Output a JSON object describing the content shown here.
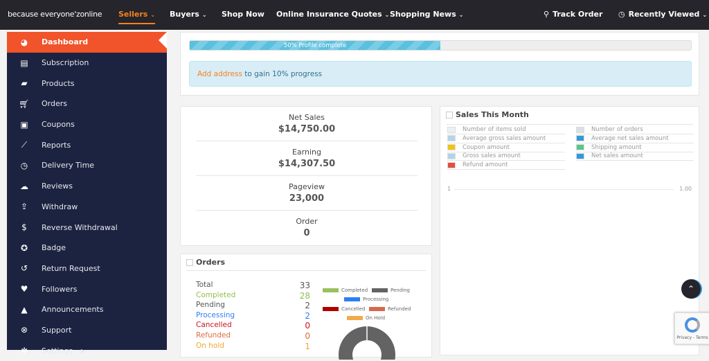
{
  "nav": {
    "brand": "because everyone'zonline",
    "items": [
      {
        "label": "Sellers",
        "dropdown": true,
        "active": true
      },
      {
        "label": "Buyers",
        "dropdown": true
      },
      {
        "label": "Shop Now"
      },
      {
        "label": "Online Insurance Quotes",
        "dropdown": true
      },
      {
        "label": "Shopping News",
        "dropdown": true
      }
    ],
    "track_order": "Track Order",
    "recently_viewed": "Recently Viewed"
  },
  "sidebar": {
    "items": [
      {
        "label": "Dashboard",
        "icon": "dashboard-icon",
        "active": true
      },
      {
        "label": "Subscription",
        "icon": "book-icon"
      },
      {
        "label": "Products",
        "icon": "briefcase-icon"
      },
      {
        "label": "Orders",
        "icon": "cart-icon"
      },
      {
        "label": "Coupons",
        "icon": "gift-icon"
      },
      {
        "label": "Reports",
        "icon": "chart-line-icon"
      },
      {
        "label": "Delivery Time",
        "icon": "clock-icon"
      },
      {
        "label": "Reviews",
        "icon": "comments-icon"
      },
      {
        "label": "Withdraw",
        "icon": "upload-icon"
      },
      {
        "label": "Reverse Withdrawal",
        "icon": "dollar-icon"
      },
      {
        "label": "Badge",
        "icon": "badge-icon"
      },
      {
        "label": "Return Request",
        "icon": "undo-icon"
      },
      {
        "label": "Followers",
        "icon": "heart-icon"
      },
      {
        "label": "Announcements",
        "icon": "bell-icon"
      },
      {
        "label": "Support",
        "icon": "lifebuoy-icon"
      },
      {
        "label": "Settings",
        "icon": "gear-icon"
      }
    ]
  },
  "profile": {
    "progress_percent": 50,
    "progress_label": "50% Profile complete",
    "alert_link": "Add address",
    "alert_text": " to gain 10% progress"
  },
  "stats": [
    {
      "label": "Net Sales",
      "value": "$14,750.00"
    },
    {
      "label": "Earning",
      "value": "$14,307.50"
    },
    {
      "label": "Pageview",
      "value": "23,000"
    },
    {
      "label": "Order",
      "value": "0"
    }
  ],
  "sales": {
    "title": "Sales This Month",
    "legend": [
      {
        "label": "Number of items sold",
        "color": "#ecf0f1"
      },
      {
        "label": "Number of orders",
        "color": "#dbe1e3"
      },
      {
        "label": "Average gross sales amount",
        "color": "#b1d4ea"
      },
      {
        "label": "Average net sales amount",
        "color": "#3498db"
      },
      {
        "label": "Coupon amount",
        "color": "#f1c40f"
      },
      {
        "label": "Shipping amount",
        "color": "#5cc488"
      },
      {
        "label": "Gross sales amount",
        "color": "#b1d4ea"
      },
      {
        "label": "Net sales amount",
        "color": "#3498db"
      },
      {
        "label": "Refund amount",
        "color": "#e74c3c"
      }
    ],
    "axis_left": "1",
    "axis_right": "1.00"
  },
  "orders": {
    "title": "Orders",
    "rows": [
      {
        "label": "Total",
        "value": "33",
        "color": "#555555"
      },
      {
        "label": "Completed",
        "value": "28",
        "color": "#8fbf4e"
      },
      {
        "label": "Pending",
        "value": "2",
        "color": "#555555"
      },
      {
        "label": "Processing",
        "value": "2",
        "color": "#2f7ef5"
      },
      {
        "label": "Cancelled",
        "value": "0",
        "color": "#c9141e"
      },
      {
        "label": "Refunded",
        "value": "0",
        "color": "#e06a45"
      },
      {
        "label": "On hold",
        "value": "1",
        "color": "#f0a830"
      }
    ],
    "chart_legend": [
      {
        "label": "Completed",
        "color": "#9ac05d"
      },
      {
        "label": "Pending",
        "color": "#636363"
      },
      {
        "label": "Processing",
        "color": "#2f7ef5"
      },
      {
        "label": "Cancelled",
        "color": "#b00000"
      },
      {
        "label": "Refunded",
        "color": "#d6694b"
      },
      {
        "label": "On Hold",
        "color": "#f0ab4b"
      }
    ]
  }
}
